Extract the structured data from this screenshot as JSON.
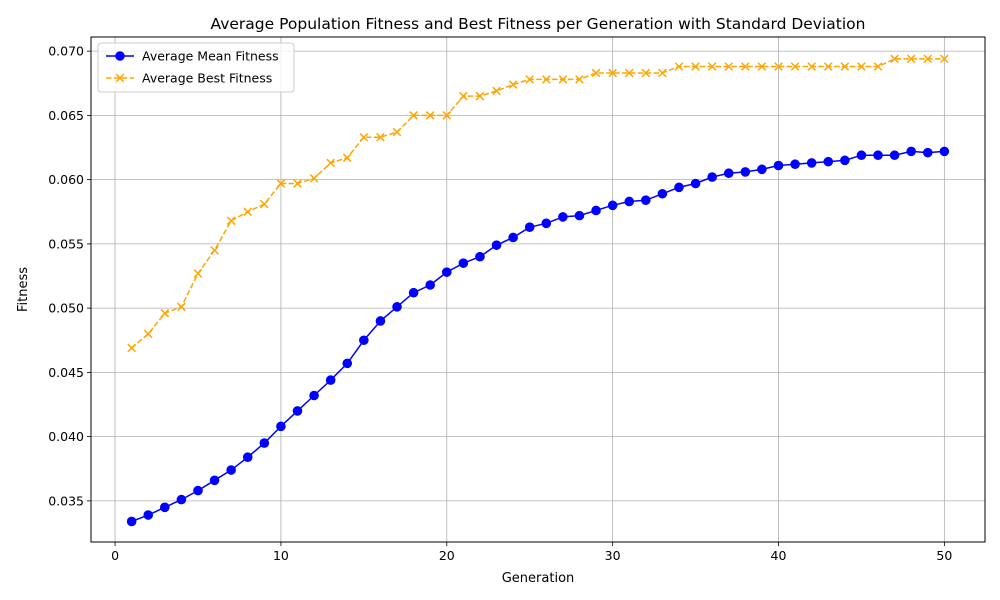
{
  "chart_data": {
    "type": "line",
    "title": "Average Population Fitness and Best Fitness per Generation with Standard Deviation",
    "xlabel": "Generation",
    "ylabel": "Fitness",
    "xlim": [
      -1.45,
      52.45
    ],
    "ylim": [
      0.0318,
      0.0711
    ],
    "xticks": [
      0,
      10,
      20,
      30,
      40,
      50
    ],
    "yticks": [
      0.035,
      0.04,
      0.045,
      0.05,
      0.055,
      0.06,
      0.065,
      0.07
    ],
    "xtick_labels": [
      "0",
      "10",
      "20",
      "30",
      "40",
      "50"
    ],
    "ytick_labels": [
      "0.035",
      "0.040",
      "0.045",
      "0.050",
      "0.055",
      "0.060",
      "0.065",
      "0.070"
    ],
    "grid": true,
    "legend_position": "top-left",
    "x": [
      1,
      2,
      3,
      4,
      5,
      6,
      7,
      8,
      9,
      10,
      11,
      12,
      13,
      14,
      15,
      16,
      17,
      18,
      19,
      20,
      21,
      22,
      23,
      24,
      25,
      26,
      27,
      28,
      29,
      30,
      31,
      32,
      33,
      34,
      35,
      36,
      37,
      38,
      39,
      40,
      41,
      42,
      43,
      44,
      45,
      46,
      47,
      48,
      49,
      50
    ],
    "series": [
      {
        "name": "Average Mean Fitness",
        "color": "#0000ff",
        "marker": "circle",
        "linestyle": "solid",
        "values": [
          0.0334,
          0.0339,
          0.0345,
          0.0351,
          0.0358,
          0.0366,
          0.0374,
          0.0384,
          0.0395,
          0.0408,
          0.042,
          0.0432,
          0.0444,
          0.0457,
          0.0475,
          0.049,
          0.0501,
          0.0512,
          0.0518,
          0.0528,
          0.0535,
          0.054,
          0.0549,
          0.0555,
          0.0563,
          0.0566,
          0.0571,
          0.0572,
          0.0576,
          0.058,
          0.0583,
          0.0584,
          0.0589,
          0.0594,
          0.0597,
          0.0602,
          0.0605,
          0.0606,
          0.0608,
          0.0611,
          0.0612,
          0.0613,
          0.0614,
          0.0615,
          0.0619,
          0.0619,
          0.0619,
          0.0622,
          0.0621,
          0.0622
        ]
      },
      {
        "name": "Average Best Fitness",
        "color": "#ffa500",
        "marker": "x",
        "linestyle": "dashed",
        "values": [
          0.0469,
          0.048,
          0.0496,
          0.0501,
          0.0527,
          0.0545,
          0.0568,
          0.0575,
          0.0581,
          0.0597,
          0.0597,
          0.0601,
          0.0613,
          0.0617,
          0.0633,
          0.0633,
          0.0637,
          0.065,
          0.065,
          0.065,
          0.0665,
          0.0665,
          0.0669,
          0.0674,
          0.0678,
          0.0678,
          0.0678,
          0.0678,
          0.0683,
          0.0683,
          0.0683,
          0.0683,
          0.0683,
          0.0688,
          0.0688,
          0.0688,
          0.0688,
          0.0688,
          0.0688,
          0.0688,
          0.0688,
          0.0688,
          0.0688,
          0.0688,
          0.0688,
          0.0688,
          0.0694,
          0.0694,
          0.0694,
          0.0694
        ]
      }
    ]
  }
}
